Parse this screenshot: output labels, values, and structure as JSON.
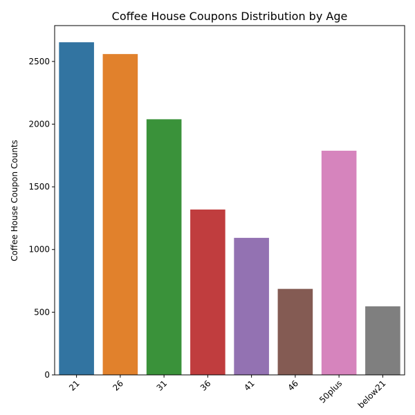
{
  "chart_data": {
    "type": "bar",
    "title": "Coffee House Coupons Distribution by Age",
    "xlabel": "",
    "ylabel": "Coffee House Coupon Counts",
    "categories": [
      "21",
      "26",
      "31",
      "36",
      "41",
      "46",
      "50plus",
      "below21"
    ],
    "values": [
      2653,
      2559,
      2039,
      1319,
      1093,
      686,
      1788,
      547
    ],
    "colors": [
      "#3274a1",
      "#e1812c",
      "#3a923a",
      "#c03d3e",
      "#9372b2",
      "#845b53",
      "#d684bd",
      "#7f7f7f"
    ],
    "yticks": [
      0,
      500,
      1000,
      1500,
      2000,
      2500
    ],
    "ylim": [
      0,
      2786
    ],
    "grid": false,
    "legend": "none"
  }
}
